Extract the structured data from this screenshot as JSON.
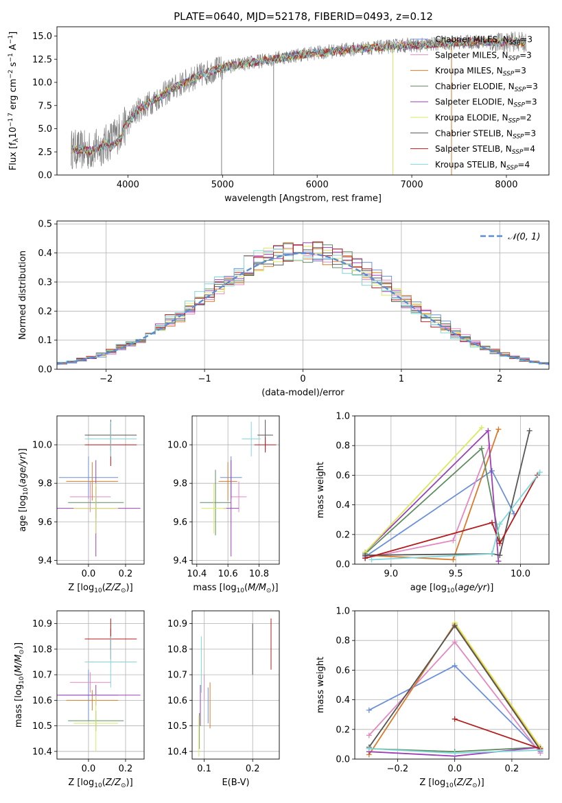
{
  "figure_title": "PLATE=0640, MJD=52178, FIBERID=0493, z=0.12",
  "colors": {
    "Chabrier MILES": "#6b8fd8",
    "Salpeter MILES": "#e388c0",
    "Kroupa MILES": "#d97a2a",
    "Chabrier ELODIE": "#5e8c5e",
    "Salpeter ELODIE": "#9b3fb6",
    "Kroupa ELODIE": "#d9e860",
    "Chabrier STELIB": "#555555",
    "Salpeter STELIB": "#b31b1b",
    "Kroupa STELIB": "#7fd7d8",
    "data": "#808080",
    "gauss": "#5b8dd6"
  },
  "chart_data": [
    {
      "id": "spectrum",
      "type": "line",
      "title": "PLATE=0640, MJD=52178, FIBERID=0493, z=0.12",
      "xlabel": "wavelength [Angstrom, rest frame]",
      "ylabel": "Flux [fλ10⁻¹⁷ erg cm⁻² s⁻¹ A⁻¹]",
      "xlim": [
        3250,
        8450
      ],
      "ylim": [
        0,
        16
      ],
      "xticks": [
        4000,
        5000,
        6000,
        7000,
        8000
      ],
      "xtick_labels": [
        "4000",
        "5000",
        "6000",
        "7000",
        "8000"
      ],
      "yticks": [
        0,
        2.5,
        5,
        7.5,
        10,
        12.5,
        15
      ],
      "ytick_labels": [
        "0.0",
        "2.5",
        "5.0",
        "7.5",
        "10.0",
        "12.5",
        "15.0"
      ],
      "continuum": {
        "x": [
          3400,
          3600,
          3750,
          3900,
          4000,
          4100,
          4300,
          4500,
          4700,
          4900,
          5100,
          5300,
          5500,
          5700,
          5900,
          6100,
          6300,
          6500,
          6700,
          6900,
          7100,
          7300,
          7500,
          7700,
          7900,
          8100,
          8200
        ],
        "y": [
          2.8,
          2.6,
          3.2,
          4.5,
          5.6,
          7.0,
          8.2,
          9.5,
          10.5,
          11.3,
          11.8,
          12.1,
          12.5,
          12.8,
          13.1,
          13.3,
          13.5,
          13.7,
          13.8,
          14.0,
          14.0,
          14.2,
          14.3,
          14.4,
          14.3,
          14.4,
          14.3
        ]
      },
      "legend": [
        "Chabrier MILES, N_SSP=3",
        "Salpeter MILES, N_SSP=3",
        "Kroupa MILES, N_SSP=3",
        "Chabrier ELODIE, N_SSP=3",
        "Salpeter ELODIE, N_SSP=3",
        "Kroupa ELODIE, N_SSP=2",
        "Chabrier STELIB, N_SSP=3",
        "Salpeter STELIB, N_SSP=4",
        "Kroupa STELIB, N_SSP=4"
      ],
      "legend_display": [
        {
          "name": "Chabrier MILES",
          "n": "3"
        },
        {
          "name": "Salpeter MILES",
          "n": "3"
        },
        {
          "name": "Kroupa MILES",
          "n": "3"
        },
        {
          "name": "Chabrier ELODIE",
          "n": "3"
        },
        {
          "name": "Salpeter ELODIE",
          "n": "3"
        },
        {
          "name": "Kroupa ELODIE",
          "n": "2"
        },
        {
          "name": "Chabrier STELIB",
          "n": "3"
        },
        {
          "name": "Salpeter STELIB",
          "n": "4"
        },
        {
          "name": "Kroupa STELIB",
          "n": "4"
        }
      ],
      "legend_placement": "upper right"
    },
    {
      "id": "residuals",
      "type": "line",
      "xlabel": "(data-model)/error",
      "ylabel": "Normed distribution",
      "xlim": [
        -2.5,
        2.5
      ],
      "ylim": [
        0,
        0.51
      ],
      "xticks": [
        -2,
        -1,
        0,
        1,
        2
      ],
      "xtick_labels": [
        "−2",
        "−1",
        "0",
        "1",
        "2"
      ],
      "yticks": [
        0,
        0.1,
        0.2,
        0.3,
        0.4,
        0.5
      ],
      "ytick_labels": [
        "0.0",
        "0.1",
        "0.2",
        "0.3",
        "0.4",
        "0.5"
      ],
      "gaussian_label": "𝒩(0, 1)",
      "legend_placement": "upper right",
      "grid": true
    },
    {
      "id": "age-vs-Z",
      "type": "scatter",
      "xlabel": "Z [log10(Z/Z⊙)]",
      "ylabel": "age [log10(age/yr)]",
      "xlim": [
        -0.17,
        0.3
      ],
      "ylim": [
        9.38,
        10.15
      ],
      "xticks": [
        0.0,
        0.2
      ],
      "xtick_labels": [
        "0.0",
        "0.2"
      ],
      "yticks": [
        9.4,
        9.6,
        9.8,
        10.0
      ],
      "ytick_labels": [
        "9.4",
        "9.6",
        "9.8",
        "10.0"
      ],
      "series": [
        {
          "name": "Chabrier MILES",
          "x": 0.0,
          "y": 9.83,
          "xerr": 0.16,
          "yerr": 0.11
        },
        {
          "name": "Salpeter MILES",
          "x": 0.01,
          "y": 9.73,
          "xerr": 0.11,
          "yerr": 0.08
        },
        {
          "name": "Kroupa MILES",
          "x": 0.02,
          "y": 9.81,
          "xerr": 0.14,
          "yerr": 0.1
        },
        {
          "name": "Chabrier ELODIE",
          "x": 0.04,
          "y": 9.7,
          "xerr": 0.15,
          "yerr": 0.08
        },
        {
          "name": "Salpeter ELODIE",
          "x": 0.04,
          "y": 9.67,
          "xerr": 0.24,
          "yerr": 0.25
        },
        {
          "name": "Kroupa ELODIE",
          "x": 0.04,
          "y": 9.67,
          "xerr": 0.12,
          "yerr": 0.13
        },
        {
          "name": "Chabrier STELIB",
          "x": 0.12,
          "y": 10.05,
          "xerr": 0.14,
          "yerr": 0.08
        },
        {
          "name": "Salpeter STELIB",
          "x": 0.12,
          "y": 10.0,
          "xerr": 0.14,
          "yerr": 0.11
        },
        {
          "name": "Kroupa STELIB",
          "x": 0.12,
          "y": 10.03,
          "xerr": 0.14,
          "yerr": 0.09
        }
      ]
    },
    {
      "id": "age-vs-mass",
      "type": "scatter",
      "xlabel": "mass [log10(M/M⊙)]",
      "ylabel": "",
      "xlim": [
        10.37,
        10.93
      ],
      "ylim": [
        9.38,
        10.15
      ],
      "xticks": [
        10.4,
        10.6,
        10.8
      ],
      "xtick_labels": [
        "10.4",
        "10.6",
        "10.8"
      ],
      "yticks": [
        9.4,
        9.6,
        9.8,
        10.0
      ],
      "ytick_labels": [
        "9.4",
        "9.6",
        "9.8",
        "10.0"
      ],
      "series": [
        {
          "name": "Chabrier MILES",
          "x": 10.62,
          "y": 9.83,
          "xerr": 0.07,
          "yerr": 0.11
        },
        {
          "name": "Salpeter MILES",
          "x": 10.67,
          "y": 9.73,
          "xerr": 0.05,
          "yerr": 0.08
        },
        {
          "name": "Kroupa MILES",
          "x": 10.6,
          "y": 9.81,
          "xerr": 0.06,
          "yerr": 0.1
        },
        {
          "name": "Chabrier ELODIE",
          "x": 10.52,
          "y": 9.7,
          "xerr": 0.1,
          "yerr": 0.17
        },
        {
          "name": "Salpeter ELODIE",
          "x": 10.62,
          "y": 9.67,
          "xerr": 0.05,
          "yerr": 0.25
        },
        {
          "name": "Kroupa ELODIE",
          "x": 10.51,
          "y": 9.67,
          "xerr": 0.08,
          "yerr": 0.13
        },
        {
          "name": "Chabrier STELIB",
          "x": 10.84,
          "y": 10.05,
          "xerr": 0.05,
          "yerr": 0.08
        },
        {
          "name": "Salpeter STELIB",
          "x": 10.84,
          "y": 10.0,
          "xerr": 0.07,
          "yerr": 0.04
        },
        {
          "name": "Kroupa STELIB",
          "x": 10.75,
          "y": 10.03,
          "xerr": 0.06,
          "yerr": 0.09
        }
      ]
    },
    {
      "id": "weight-vs-age",
      "type": "line",
      "xlabel": "age [log10(age/yr)]",
      "ylabel": "mass weight",
      "xlim": [
        8.72,
        10.22
      ],
      "ylim": [
        0,
        1
      ],
      "xticks": [
        9.0,
        9.5,
        10.0
      ],
      "xtick_labels": [
        "9.0",
        "9.5",
        "10.0"
      ],
      "yticks": [
        0,
        0.2,
        0.4,
        0.6,
        0.8,
        1.0
      ],
      "ytick_labels": [
        "0.0",
        "0.2",
        "0.4",
        "0.6",
        "0.8",
        "1.0"
      ],
      "series": [
        {
          "name": "Chabrier MILES",
          "x": [
            8.8,
            9.78,
            9.95
          ],
          "y": [
            0.05,
            0.63,
            0.34
          ]
        },
        {
          "name": "Salpeter MILES",
          "x": [
            8.8,
            9.48,
            9.76
          ],
          "y": [
            0.04,
            0.16,
            0.8
          ]
        },
        {
          "name": "Kroupa MILES",
          "x": [
            8.8,
            9.48,
            9.83
          ],
          "y": [
            0.06,
            0.03,
            0.91
          ]
        },
        {
          "name": "Chabrier ELODIE",
          "x": [
            8.8,
            9.7,
            9.84
          ],
          "y": [
            0.07,
            0.78,
            0.16
          ]
        },
        {
          "name": "Salpeter ELODIE",
          "x": [
            8.8,
            9.75,
            9.83
          ],
          "y": [
            0.08,
            0.9,
            0.02
          ]
        },
        {
          "name": "Kroupa ELODIE",
          "x": [
            8.8,
            9.7
          ],
          "y": [
            0.08,
            0.92
          ]
        },
        {
          "name": "Chabrier STELIB",
          "x": [
            8.8,
            9.78,
            9.84,
            10.07
          ],
          "y": [
            0.06,
            0.07,
            0.06,
            0.9
          ]
        },
        {
          "name": "Salpeter STELIB",
          "x": [
            8.8,
            9.78,
            9.84,
            10.13
          ],
          "y": [
            0.04,
            0.28,
            0.14,
            0.6
          ]
        },
        {
          "name": "Kroupa STELIB",
          "x": [
            8.85,
            9.78,
            9.84,
            10.15
          ],
          "y": [
            0.03,
            0.07,
            0.27,
            0.62
          ]
        }
      ]
    },
    {
      "id": "mass-vs-Z",
      "type": "scatter",
      "xlabel": "Z [log10(Z/Z⊙)]",
      "ylabel": "mass [log10(M/M⊙)]",
      "xlim": [
        -0.17,
        0.3
      ],
      "ylim": [
        10.37,
        10.95
      ],
      "xticks": [
        0.0,
        0.2
      ],
      "xtick_labels": [
        "0.0",
        "0.2"
      ],
      "yticks": [
        10.4,
        10.5,
        10.6,
        10.7,
        10.8,
        10.9
      ],
      "ytick_labels": [
        "10.4",
        "10.5",
        "10.6",
        "10.7",
        "10.8",
        "10.9"
      ],
      "series": [
        {
          "name": "Chabrier MILES",
          "x": 0.0,
          "y": 10.62,
          "xerr": 0.16,
          "yerr": 0.1
        },
        {
          "name": "Salpeter MILES",
          "x": 0.01,
          "y": 10.67,
          "xerr": 0.11,
          "yerr": 0.04
        },
        {
          "name": "Kroupa MILES",
          "x": 0.02,
          "y": 10.6,
          "xerr": 0.14,
          "yerr": 0.04
        },
        {
          "name": "Chabrier ELODIE",
          "x": 0.04,
          "y": 10.52,
          "xerr": 0.15,
          "yerr": 0.04
        },
        {
          "name": "Salpeter ELODIE",
          "x": 0.04,
          "y": 10.62,
          "xerr": 0.24,
          "yerr": 0.04
        },
        {
          "name": "Kroupa ELODIE",
          "x": 0.04,
          "y": 10.51,
          "xerr": 0.12,
          "yerr": 0.11
        },
        {
          "name": "Chabrier STELIB",
          "x": 0.12,
          "y": 10.84,
          "xerr": 0.14,
          "yerr": 0.04
        },
        {
          "name": "Salpeter STELIB",
          "x": 0.12,
          "y": 10.84,
          "xerr": 0.14,
          "yerr": 0.08
        },
        {
          "name": "Kroupa STELIB",
          "x": 0.12,
          "y": 10.75,
          "xerr": 0.14,
          "yerr": 0.1
        }
      ]
    },
    {
      "id": "mass-vs-EBV",
      "type": "scatter",
      "xlabel": "E(B-V)",
      "ylabel": "",
      "xlim": [
        0.075,
        0.255
      ],
      "ylim": [
        10.37,
        10.95
      ],
      "xticks": [
        0.1,
        0.2
      ],
      "xtick_labels": [
        "0.1",
        "0.2"
      ],
      "yticks": [
        10.4,
        10.5,
        10.6,
        10.7,
        10.8,
        10.9
      ],
      "ytick_labels": [
        "10.4",
        "10.5",
        "10.6",
        "10.7",
        "10.8",
        "10.9"
      ],
      "series": [
        {
          "name": "Chabrier MILES",
          "x": 0.108,
          "y": 10.58,
          "xerr": 0.0,
          "yerr": 0.07
        },
        {
          "name": "Salpeter MILES",
          "x": 0.1,
          "y": 10.65,
          "xerr": 0.0,
          "yerr": 0.05
        },
        {
          "name": "Kroupa MILES",
          "x": 0.112,
          "y": 10.58,
          "xerr": 0.0,
          "yerr": 0.09
        },
        {
          "name": "Chabrier ELODIE",
          "x": 0.09,
          "y": 10.48,
          "xerr": 0.0,
          "yerr": 0.07
        },
        {
          "name": "Salpeter ELODIE",
          "x": 0.092,
          "y": 10.58,
          "xerr": 0.0,
          "yerr": 0.08
        },
        {
          "name": "Kroupa ELODIE",
          "x": 0.089,
          "y": 10.46,
          "xerr": 0.0,
          "yerr": 0.08
        },
        {
          "name": "Chabrier STELIB",
          "x": 0.2,
          "y": 10.8,
          "xerr": 0.0,
          "yerr": 0.1
        },
        {
          "name": "Salpeter STELIB",
          "x": 0.238,
          "y": 10.82,
          "xerr": 0.0,
          "yerr": 0.1
        },
        {
          "name": "Kroupa STELIB",
          "x": 0.094,
          "y": 10.74,
          "xerr": 0.0,
          "yerr": 0.11
        }
      ]
    },
    {
      "id": "weight-vs-Z",
      "type": "line",
      "xlabel": "Z [log10(Z/Z⊙)]",
      "ylabel": "mass weight",
      "xlim": [
        -0.35,
        0.33
      ],
      "ylim": [
        0,
        1
      ],
      "xticks": [
        -0.2,
        0.0,
        0.2
      ],
      "xtick_labels": [
        "−0.2",
        "0.0",
        "0.2"
      ],
      "yticks": [
        0,
        0.2,
        0.4,
        0.6,
        0.8,
        1.0
      ],
      "ytick_labels": [
        "0.0",
        "0.2",
        "0.4",
        "0.6",
        "0.8",
        "1.0"
      ],
      "series": [
        {
          "name": "Chabrier MILES",
          "x": [
            -0.3,
            0.0,
            0.3
          ],
          "y": [
            0.33,
            0.63,
            0.05
          ]
        },
        {
          "name": "Salpeter MILES",
          "x": [
            -0.3,
            0.0,
            0.3
          ],
          "y": [
            0.16,
            0.79,
            0.04
          ]
        },
        {
          "name": "Kroupa MILES",
          "x": [
            -0.3,
            0.0,
            0.3
          ],
          "y": [
            0.03,
            0.91,
            0.07
          ]
        },
        {
          "name": "Chabrier ELODIE",
          "x": [
            -0.3,
            0.0,
            0.3
          ],
          "y": [
            0.07,
            0.05,
            0.08
          ]
        },
        {
          "name": "Salpeter ELODIE",
          "x": [
            -0.3,
            0.0,
            0.3
          ],
          "y": [
            0.05,
            0.02,
            0.08
          ]
        },
        {
          "name": "Kroupa ELODIE",
          "x": [
            0.0,
            0.3
          ],
          "y": [
            0.92,
            0.08
          ]
        },
        {
          "name": "Chabrier STELIB",
          "x": [
            -0.3,
            0.0,
            0.3
          ],
          "y": [
            0.08,
            0.9,
            0.06
          ]
        },
        {
          "name": "Salpeter STELIB",
          "x": [
            0.0,
            0.3
          ],
          "y": [
            0.27,
            0.07
          ]
        },
        {
          "name": "Kroupa STELIB",
          "x": [
            -0.3,
            0.0,
            0.3
          ],
          "y": [
            0.07,
            0.04,
            0.06
          ]
        }
      ]
    }
  ]
}
